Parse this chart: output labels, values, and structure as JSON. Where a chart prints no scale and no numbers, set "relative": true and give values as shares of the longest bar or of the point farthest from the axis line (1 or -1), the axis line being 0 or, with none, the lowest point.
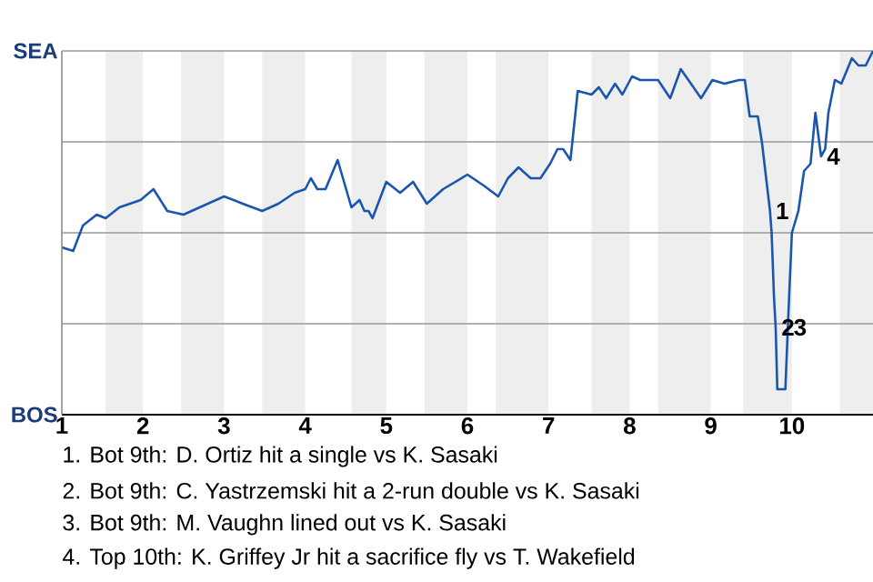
{
  "chart_data": {
    "type": "line",
    "relative": true,
    "x": [
      1.0,
      1.14,
      1.26,
      1.43,
      1.54,
      1.71,
      1.97,
      2.13,
      2.3,
      2.5,
      2.7,
      3.0,
      3.23,
      3.47,
      3.67,
      3.87,
      4.0,
      4.07,
      4.15,
      4.25,
      4.4,
      4.57,
      4.67,
      4.73,
      4.78,
      4.83,
      5.0,
      5.17,
      5.33,
      5.5,
      5.7,
      6.0,
      6.2,
      6.38,
      6.5,
      6.63,
      6.78,
      6.9,
      7.02,
      7.11,
      7.18,
      7.27,
      7.36,
      7.53,
      7.62,
      7.71,
      7.82,
      7.91,
      8.03,
      8.13,
      8.35,
      8.5,
      8.63,
      8.88,
      9.02,
      9.17,
      9.35,
      9.42,
      9.48,
      9.58,
      9.63,
      9.73,
      9.75,
      9.78,
      9.8,
      9.82,
      9.92,
      9.95,
      10.0,
      10.08,
      10.15,
      10.23,
      10.29,
      10.36,
      10.41,
      10.45,
      10.53,
      10.61,
      10.74,
      10.82,
      10.91,
      11.0
    ],
    "series": [
      {
        "color": "#1a56b0",
        "values": [
          0.46,
          0.45,
          0.52,
          0.55,
          0.54,
          0.57,
          0.59,
          0.62,
          0.56,
          0.55,
          0.57,
          0.6,
          0.58,
          0.56,
          0.58,
          0.61,
          0.62,
          0.65,
          0.62,
          0.62,
          0.7,
          0.57,
          0.59,
          0.56,
          0.56,
          0.54,
          0.64,
          0.61,
          0.64,
          0.58,
          0.62,
          0.66,
          0.63,
          0.6,
          0.65,
          0.68,
          0.65,
          0.65,
          0.69,
          0.73,
          0.73,
          0.7,
          0.89,
          0.88,
          0.9,
          0.87,
          0.91,
          0.88,
          0.93,
          0.92,
          0.92,
          0.87,
          0.95,
          0.87,
          0.92,
          0.91,
          0.92,
          0.92,
          0.82,
          0.82,
          0.75,
          0.56,
          0.5,
          0.32,
          0.24,
          0.07,
          0.07,
          0.24,
          0.5,
          0.56,
          0.67,
          0.69,
          0.83,
          0.71,
          0.73,
          0.83,
          0.92,
          0.91,
          0.98,
          0.96,
          0.96,
          1.0
        ]
      }
    ],
    "xlim": [
      1,
      11
    ],
    "xticks": [
      1,
      2,
      3,
      4,
      5,
      6,
      7,
      8,
      9,
      10
    ],
    "ref_lines": [
      {
        "axis": "y",
        "value": 0.25,
        "color": "#999999"
      },
      {
        "axis": "y",
        "value": 0.5,
        "color": "#999999"
      },
      {
        "axis": "y",
        "value": 0.75,
        "color": "#999999"
      },
      {
        "axis": "y",
        "value": 1,
        "color": "#999999"
      }
    ],
    "bands": [
      {
        "axis": "x",
        "from": 1.54,
        "to": 2,
        "color": "#eeeeee"
      },
      {
        "axis": "x",
        "from": 2.47,
        "to": 3,
        "color": "#eeeeee"
      },
      {
        "axis": "x",
        "from": 3.47,
        "to": 4,
        "color": "#eeeeee"
      },
      {
        "axis": "x",
        "from": 4.57,
        "to": 5,
        "color": "#eeeeee"
      },
      {
        "axis": "x",
        "from": 5.47,
        "to": 6,
        "color": "#eeeeee"
      },
      {
        "axis": "x",
        "from": 6.35,
        "to": 7,
        "color": "#eeeeee"
      },
      {
        "axis": "x",
        "from": 7.53,
        "to": 8,
        "color": "#eeeeee"
      },
      {
        "axis": "x",
        "from": 8.35,
        "to": 9,
        "color": "#eeeeee"
      },
      {
        "axis": "x",
        "from": 9.4,
        "to": 10,
        "color": "#eeeeee"
      },
      {
        "axis": "x",
        "from": 10.59,
        "to": 11,
        "color": "#eeeeee"
      }
    ],
    "annotations": [
      "SEA",
      "BOS",
      {
        "text": "1",
        "x": 9.73,
        "y": 0.56
      },
      {
        "text": "2",
        "x": 9.8,
        "y": 0.24
      },
      {
        "text": "3",
        "x": 9.95,
        "y": 0.24
      },
      {
        "text": "4",
        "x": 10.36,
        "y": 0.71
      },
      "1. Bot 9th: D. Ortiz hit a single vs K. Sasaki",
      "2. Bot 9th: C. Yastrzemski hit a 2-run double vs K. Sasaki",
      "3. Bot 9th: M. Vaughn lined out vs K. Sasaki",
      "4. Top 10th: K. Griffey Jr hit a sacrifice fly vs T. Wakefield"
    ]
  }
}
